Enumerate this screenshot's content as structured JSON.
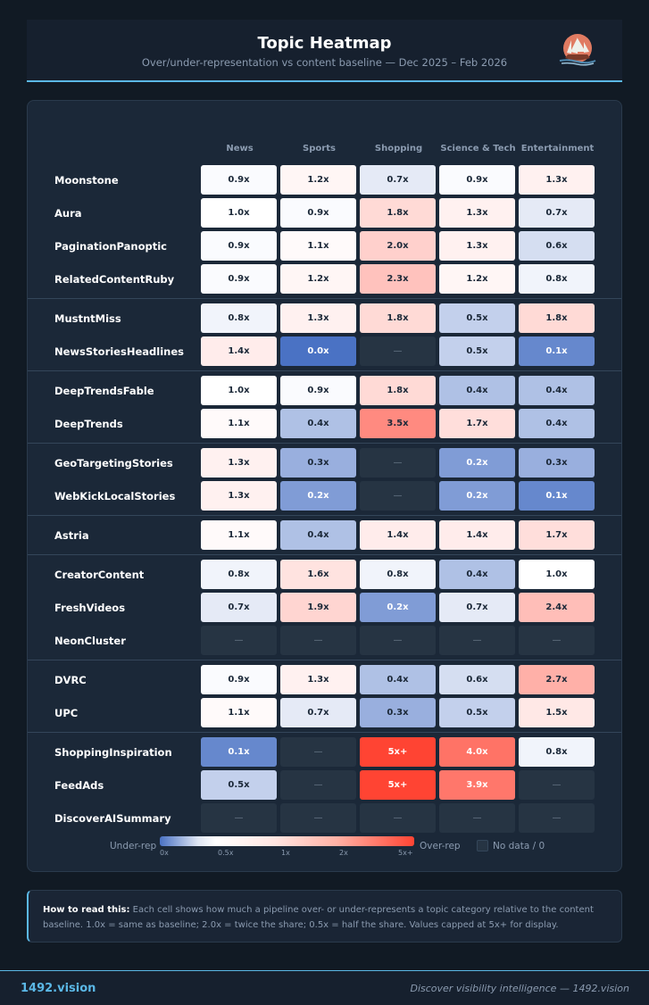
{
  "header": {
    "title": "Topic Heatmap",
    "subtitle": "Over/under-representation vs content baseline — Dec 2025 – Feb 2026"
  },
  "chart_data": {
    "type": "heatmap",
    "columns": [
      "News",
      "Sports",
      "Shopping",
      "Science & Tech",
      "Entertainment"
    ],
    "groups": [
      [
        {
          "name": "Moonstone",
          "values": [
            0.9,
            1.2,
            0.7,
            0.9,
            1.3
          ]
        },
        {
          "name": "Aura",
          "values": [
            1.0,
            0.9,
            1.8,
            1.3,
            0.7
          ]
        },
        {
          "name": "PaginationPanoptic",
          "values": [
            0.9,
            1.1,
            2.0,
            1.3,
            0.6
          ]
        },
        {
          "name": "RelatedContentRuby",
          "values": [
            0.9,
            1.2,
            2.3,
            1.2,
            0.8
          ]
        }
      ],
      [
        {
          "name": "MustntMiss",
          "values": [
            0.8,
            1.3,
            1.8,
            0.5,
            1.8
          ]
        },
        {
          "name": "NewsStoriesHeadlines",
          "values": [
            1.4,
            0.0,
            null,
            0.5,
            0.1
          ]
        }
      ],
      [
        {
          "name": "DeepTrendsFable",
          "values": [
            1.0,
            0.9,
            1.8,
            0.4,
            0.4
          ]
        },
        {
          "name": "DeepTrends",
          "values": [
            1.1,
            0.4,
            3.5,
            1.7,
            0.4
          ]
        }
      ],
      [
        {
          "name": "GeoTargetingStories",
          "values": [
            1.3,
            0.3,
            null,
            0.2,
            0.3
          ]
        },
        {
          "name": "WebKickLocalStories",
          "values": [
            1.3,
            0.2,
            null,
            0.2,
            0.1
          ]
        }
      ],
      [
        {
          "name": "Astria",
          "values": [
            1.1,
            0.4,
            1.4,
            1.4,
            1.7
          ]
        }
      ],
      [
        {
          "name": "CreatorContent",
          "values": [
            0.8,
            1.6,
            0.8,
            0.4,
            1.0
          ]
        },
        {
          "name": "FreshVideos",
          "values": [
            0.7,
            1.9,
            0.2,
            0.7,
            2.4
          ]
        },
        {
          "name": "NeonCluster",
          "values": [
            null,
            null,
            null,
            null,
            null
          ]
        }
      ],
      [
        {
          "name": "DVRC",
          "values": [
            0.9,
            1.3,
            0.4,
            0.6,
            2.7
          ]
        },
        {
          "name": "UPC",
          "values": [
            1.1,
            0.7,
            0.3,
            0.5,
            1.5
          ]
        }
      ],
      [
        {
          "name": "ShoppingInspiration",
          "values": [
            0.1,
            null,
            5,
            4.0,
            0.8
          ]
        },
        {
          "name": "FeedAds",
          "values": [
            0.5,
            null,
            5,
            3.9,
            null
          ]
        },
        {
          "name": "DiscoverAISummary",
          "values": [
            null,
            null,
            null,
            null,
            null
          ]
        }
      ]
    ],
    "value_suffix": "x",
    "cap_label": "5x+",
    "null_label": "—",
    "colors": {
      "under": "#4a72c4",
      "baseline": "#ffffff",
      "over": "#ff4433",
      "no_data": "#263443"
    },
    "legend": {
      "under_label": "Under-rep",
      "over_label": "Over-rep",
      "no_data_label": "No data / 0",
      "ticks": [
        "0x",
        "0.5x",
        "1x",
        "2x",
        "5x+"
      ]
    }
  },
  "info": {
    "bold": "How to read this:",
    "text": " Each cell shows how much a pipeline over- or under-represents a topic category relative to the content baseline. 1.0x = same as baseline; 2.0x = twice the share; 0.5x = half the share. Values capped at 5x+ for display."
  },
  "footer": {
    "brand": "1492.vision",
    "tagline": "Discover visibility intelligence — 1492.vision"
  }
}
